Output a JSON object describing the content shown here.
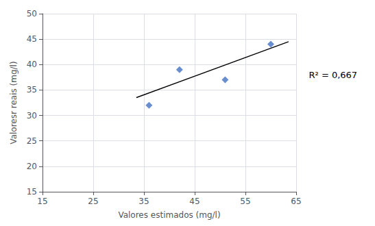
{
  "chart_data": {
    "type": "scatter",
    "xlabel": "Valores estimados (mg/l)",
    "ylabel": "Valoresr reais (mg/l)",
    "annotation": "R² = 0,667",
    "series": [
      {
        "type": "scatter",
        "x": [
          36,
          42,
          51,
          60
        ],
        "values": [
          32,
          39,
          37,
          44
        ],
        "color": "#4472C4",
        "marker": "diamond"
      },
      {
        "type": "line",
        "x": [
          33.5,
          63.5
        ],
        "values": [
          33.5,
          44.5
        ],
        "color": "#000000",
        "line_style": "solid"
      }
    ],
    "xlim": [
      15,
      65
    ],
    "ylim": [
      15,
      50
    ],
    "xticks": [
      15,
      25,
      35,
      45,
      55,
      65
    ],
    "yticks": [
      15,
      20,
      25,
      30,
      35,
      40,
      45,
      50
    ],
    "grid": true
  }
}
